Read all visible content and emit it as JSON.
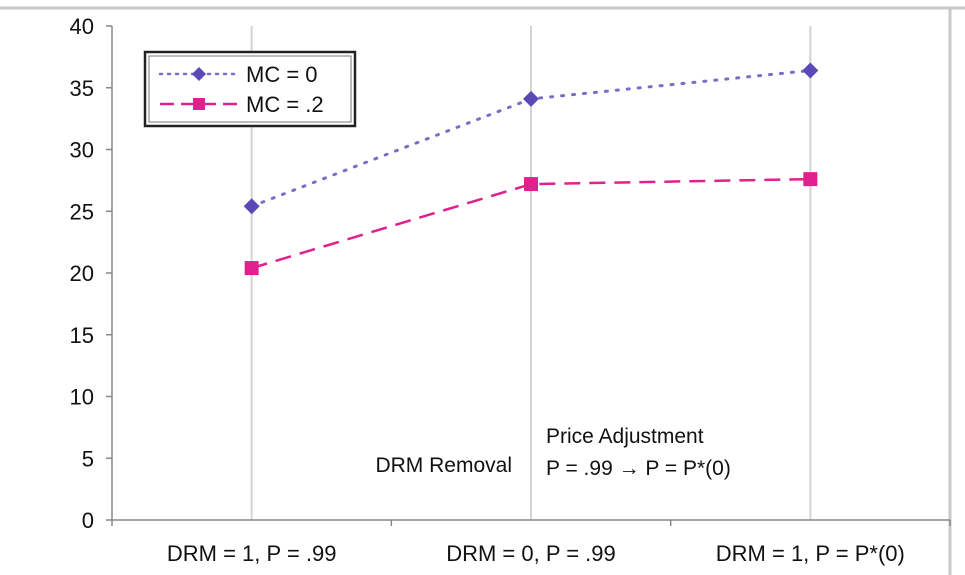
{
  "chart_data": {
    "type": "line",
    "categories": [
      "DRM = 1, P = .99",
      "DRM = 0, P = .99",
      "DRM = 1, P = P*(0)"
    ],
    "ylim": [
      0,
      40
    ],
    "yticks": [
      0,
      5,
      10,
      15,
      20,
      25,
      30,
      35,
      40
    ],
    "grid": "vertical",
    "legend_position": "top-left",
    "series": [
      {
        "name": "MC = 0",
        "values": [
          25.4,
          34.1,
          36.4
        ],
        "color": "#7b6cc8",
        "marker": "diamond",
        "line_style": "dotted"
      },
      {
        "name": "MC = .2",
        "values": [
          20.4,
          27.2,
          27.6
        ],
        "color": "#e0208c",
        "marker": "square",
        "line_style": "dashed"
      }
    ],
    "annotations": {
      "drm_removal": "DRM Removal",
      "price_adjustment_line1": "Price Adjustment",
      "price_adjustment_line2": "P = .99 → P = P*(0)"
    }
  },
  "colors": {
    "frame": "#c8c8c8",
    "gridline": "#d4d4d4",
    "legend_border": "#222222"
  }
}
